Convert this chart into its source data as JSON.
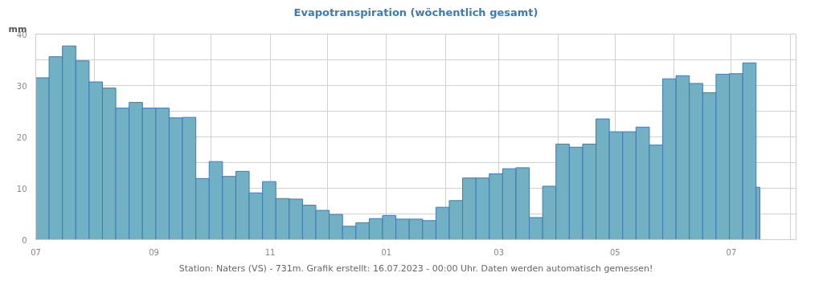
{
  "chart_data": {
    "type": "histogram",
    "title": "Evapotranspiration (wöchentlich gesamt)",
    "ylabel": "mm",
    "bins": [
      "2022-07-01",
      "2022-07-08",
      "2022-07-15",
      "2022-07-22",
      "2022-07-29",
      "2022-08-05",
      "2022-08-12",
      "2022-08-19",
      "2022-08-26",
      "2022-09-02",
      "2022-09-09",
      "2022-09-16",
      "2022-09-23",
      "2022-09-30",
      "2022-10-07",
      "2022-10-14",
      "2022-10-21",
      "2022-10-28",
      "2022-11-04",
      "2022-11-11",
      "2022-11-18",
      "2022-11-25",
      "2022-12-02",
      "2022-12-09",
      "2022-12-16",
      "2022-12-23",
      "2022-12-30",
      "2023-01-06",
      "2023-01-13",
      "2023-01-20",
      "2023-01-27",
      "2023-02-03",
      "2023-02-10",
      "2023-02-17",
      "2023-02-24",
      "2023-03-03",
      "2023-03-10",
      "2023-03-17",
      "2023-03-24",
      "2023-03-31",
      "2023-04-07",
      "2023-04-14",
      "2023-04-21",
      "2023-04-28",
      "2023-05-05",
      "2023-05-12",
      "2023-05-19",
      "2023-05-26",
      "2023-06-02",
      "2023-06-09",
      "2023-06-16",
      "2023-06-23",
      "2023-06-30",
      "2023-07-07",
      "2023-07-14",
      "2023-07-16"
    ],
    "values": [
      31.5,
      35.6,
      37.7,
      34.8,
      30.7,
      29.5,
      25.6,
      26.7,
      25.6,
      25.6,
      23.7,
      23.8,
      11.9,
      15.2,
      12.3,
      13.3,
      9.1,
      11.3,
      8.0,
      7.9,
      6.7,
      5.7,
      4.9,
      2.6,
      3.3,
      4.1,
      4.7,
      4.0,
      4.0,
      3.7,
      6.3,
      7.6,
      12.0,
      12.0,
      12.8,
      13.8,
      14.0,
      4.3,
      10.4,
      18.6,
      18.0,
      18.6,
      23.5,
      21.0,
      21.0,
      21.9,
      18.4,
      31.3,
      31.9,
      30.4,
      28.6,
      32.2,
      32.3,
      34.4,
      10.2
    ],
    "color": "#72b0c4",
    "xlim": [
      "2022-07-01",
      "2023-08-04"
    ],
    "xticks": [
      {
        "value": "2022-07-01",
        "label": "07"
      },
      {
        "value": "2022-08-01",
        "label": null
      },
      {
        "value": "2022-09-01",
        "label": "09"
      },
      {
        "value": "2022-10-01",
        "label": null
      },
      {
        "value": "2022-11-01",
        "label": "11"
      },
      {
        "value": "2022-12-01",
        "label": null
      },
      {
        "value": "2023-01-01",
        "label": "01"
      },
      {
        "value": "2023-02-01",
        "label": null
      },
      {
        "value": "2023-03-01",
        "label": "03"
      },
      {
        "value": "2023-04-01",
        "label": null
      },
      {
        "value": "2023-05-01",
        "label": "05"
      },
      {
        "value": "2023-06-01",
        "label": null
      },
      {
        "value": "2023-07-01",
        "label": "07"
      },
      {
        "value": "2023-08-01",
        "label": null
      }
    ],
    "ylim": [
      0,
      40
    ],
    "yticks": [
      0,
      {
        "value": 5,
        "label": null
      },
      10,
      {
        "value": 15,
        "label": null
      },
      20,
      {
        "value": 25,
        "label": null
      },
      30,
      {
        "value": 35,
        "label": null
      },
      40
    ],
    "grid": true,
    "annotations": [
      "Station: Naters (VS) - 731m. Grafik erstellt: 16.07.2023 - 00:00 Uhr. Daten werden automatisch gemessen!"
    ]
  }
}
